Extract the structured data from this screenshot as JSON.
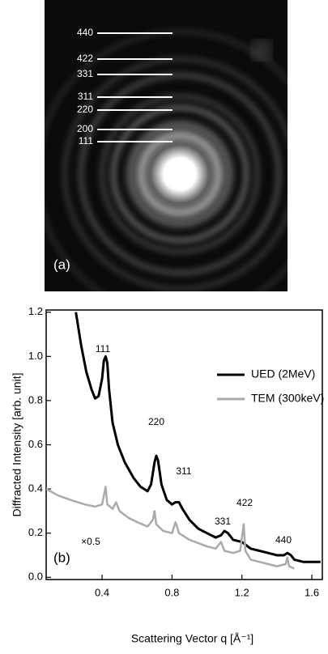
{
  "panel_a": {
    "label": "(a)",
    "ring_labels": [
      "440",
      "422",
      "331",
      "311",
      "220",
      "200",
      "111"
    ]
  },
  "chart_data": {
    "type": "line",
    "xlabel": "Scattering Vector q [Å⁻¹]",
    "ylabel": "Diffracted Intensity [arb. unit]",
    "panel_label": "(b)",
    "annotations": [
      "111",
      "220",
      "311",
      "331",
      "422",
      "440",
      "×0.5"
    ],
    "xlim": [
      0.08,
      1.66
    ],
    "ylim": [
      -0.01,
      1.21
    ],
    "xticks": [
      0.4,
      0.8,
      1.2,
      1.6
    ],
    "yticks": [
      {
        "value": 0,
        "label": "0.0"
      },
      0.2,
      0.4,
      0.6,
      0.8,
      {
        "value": 1,
        "label": "1.0"
      },
      1.2
    ],
    "legend": "upper right",
    "series": [
      {
        "name": "UED (2MeV)",
        "color": "#000000",
        "x": [
          0.25,
          0.28,
          0.31,
          0.34,
          0.36,
          0.38,
          0.4,
          0.41,
          0.42,
          0.43,
          0.44,
          0.46,
          0.49,
          0.53,
          0.58,
          0.62,
          0.66,
          0.68,
          0.7,
          0.71,
          0.72,
          0.74,
          0.77,
          0.8,
          0.82,
          0.84,
          0.86,
          0.9,
          0.95,
          1.0,
          1.05,
          1.08,
          1.1,
          1.12,
          1.15,
          1.2,
          1.25,
          1.3,
          1.35,
          1.4,
          1.44,
          1.46,
          1.48,
          1.5,
          1.55,
          1.6,
          1.65
        ],
        "values": [
          1.2,
          1.05,
          0.93,
          0.85,
          0.81,
          0.82,
          0.9,
          0.98,
          1.0,
          0.97,
          0.85,
          0.7,
          0.6,
          0.52,
          0.45,
          0.41,
          0.39,
          0.42,
          0.52,
          0.55,
          0.53,
          0.42,
          0.35,
          0.33,
          0.34,
          0.34,
          0.31,
          0.26,
          0.22,
          0.2,
          0.18,
          0.19,
          0.21,
          0.2,
          0.17,
          0.16,
          0.13,
          0.12,
          0.11,
          0.1,
          0.1,
          0.11,
          0.1,
          0.08,
          0.07,
          0.07,
          0.07
        ]
      },
      {
        "name": "TEM (300keV)",
        "color": "#aaaaaa",
        "x": [
          0.08,
          0.15,
          0.22,
          0.3,
          0.36,
          0.4,
          0.42,
          0.43,
          0.46,
          0.48,
          0.5,
          0.55,
          0.6,
          0.66,
          0.69,
          0.7,
          0.71,
          0.75,
          0.8,
          0.82,
          0.84,
          0.9,
          1.0,
          1.05,
          1.08,
          1.1,
          1.15,
          1.19,
          1.21,
          1.22,
          1.25,
          1.3,
          1.35,
          1.4,
          1.45,
          1.46,
          1.47,
          1.5
        ],
        "values": [
          0.4,
          0.37,
          0.35,
          0.33,
          0.32,
          0.33,
          0.41,
          0.33,
          0.31,
          0.34,
          0.3,
          0.27,
          0.25,
          0.23,
          0.26,
          0.3,
          0.24,
          0.21,
          0.2,
          0.25,
          0.2,
          0.17,
          0.14,
          0.13,
          0.16,
          0.12,
          0.11,
          0.12,
          0.24,
          0.12,
          0.08,
          0.07,
          0.06,
          0.05,
          0.06,
          0.09,
          0.05,
          0.04
        ]
      }
    ]
  }
}
